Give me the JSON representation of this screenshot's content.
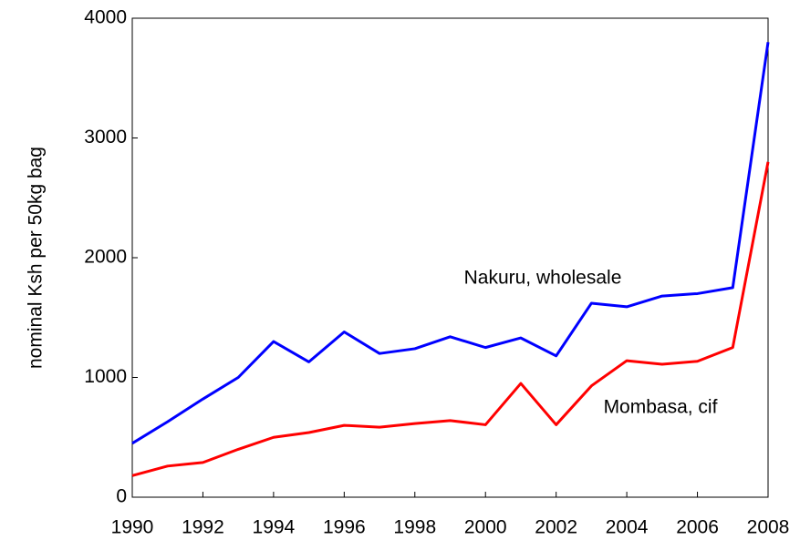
{
  "chart_data": {
    "type": "line",
    "y_label": "nominal Ksh per 50kg bag",
    "x": [
      1990,
      1991,
      1992,
      1993,
      1994,
      1995,
      1996,
      1997,
      1998,
      1999,
      2000,
      2001,
      2002,
      2003,
      2004,
      2005,
      2006,
      2007,
      2008
    ],
    "series": [
      {
        "name": "Nakuru, wholesale",
        "color": "#0000ff",
        "values": [
          450,
          630,
          820,
          1000,
          1300,
          1130,
          1380,
          1200,
          1240,
          1340,
          1250,
          1330,
          1180,
          1620,
          1590,
          1680,
          1700,
          1750,
          3800
        ]
      },
      {
        "name": "Mombasa, cif",
        "color": "#ff0000",
        "values": [
          180,
          260,
          290,
          400,
          500,
          540,
          600,
          585,
          615,
          640,
          605,
          950,
          605,
          930,
          1140,
          1110,
          1135,
          1250,
          2800
        ]
      }
    ],
    "xlim": [
      1990,
      2008
    ],
    "xticks": [
      1990,
      1992,
      1994,
      1996,
      1998,
      2000,
      2002,
      2004,
      2006,
      2008
    ],
    "ylim": [
      0,
      4000
    ],
    "yticks": [
      0,
      1000,
      2000,
      3000,
      4000
    ],
    "grid": false
  }
}
